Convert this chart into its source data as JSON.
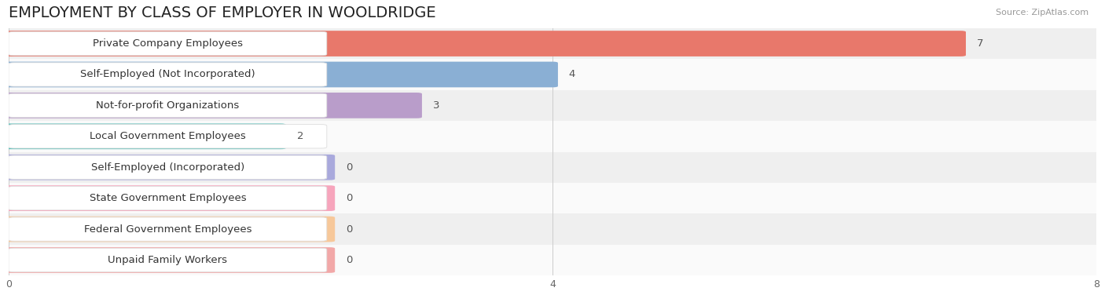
{
  "title": "EMPLOYMENT BY CLASS OF EMPLOYER IN WOOLDRIDGE",
  "source": "Source: ZipAtlas.com",
  "categories": [
    "Private Company Employees",
    "Self-Employed (Not Incorporated)",
    "Not-for-profit Organizations",
    "Local Government Employees",
    "Self-Employed (Incorporated)",
    "State Government Employees",
    "Federal Government Employees",
    "Unpaid Family Workers"
  ],
  "values": [
    7,
    4,
    3,
    2,
    0,
    0,
    0,
    0
  ],
  "bar_colors": [
    "#e8786b",
    "#8aafd4",
    "#b99dca",
    "#5ec0ba",
    "#a9a9dc",
    "#f7a5bc",
    "#f7c89a",
    "#f2a8a8"
  ],
  "xlim": [
    0,
    8
  ],
  "xticks": [
    0,
    4,
    8
  ],
  "background_color": "#ffffff",
  "row_colors": [
    "#efefef",
    "#fafafa"
  ],
  "title_fontsize": 14,
  "label_fontsize": 9.5,
  "value_fontsize": 9.5
}
